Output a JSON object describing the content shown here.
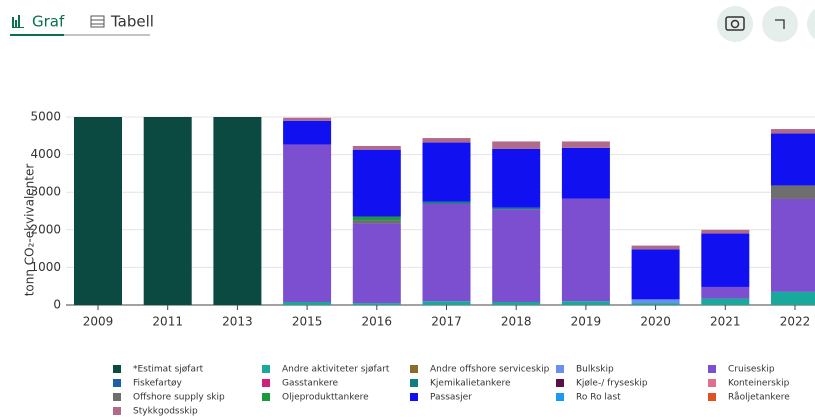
{
  "ui": {
    "tabs": [
      "Graf",
      "Tabell"
    ]
  },
  "chart_data": {
    "type": "stacked_bar",
    "y_label": "tonn CO₂-ekvivalenter",
    "categories": [
      "2009",
      "2011",
      "2013",
      "2015",
      "2016",
      "2017",
      "2018",
      "2019",
      "2020",
      "2021",
      "2022"
    ],
    "ylim": [
      0,
      5000
    ],
    "yticks": [
      0,
      1000,
      2000,
      3000,
      4000,
      5000
    ],
    "grid": true,
    "series": [
      {
        "name": "*Estimat sjøfart",
        "color": "#0b4a40",
        "values": [
          5000,
          5000,
          5000,
          null,
          null,
          null,
          null,
          null,
          null,
          null,
          null
        ]
      },
      {
        "name": "Andre aktiviteter sjøfart",
        "color": "#19a89c",
        "values": [
          null,
          null,
          null,
          80,
          50,
          100,
          80,
          100,
          50,
          170,
          350
        ]
      },
      {
        "name": "Andre offshore serviceskip",
        "color": "#8a6d2b",
        "values": [
          null,
          null,
          null,
          null,
          null,
          null,
          null,
          null,
          null,
          null,
          null
        ]
      },
      {
        "name": "Bulkskip",
        "color": "#6a8ff0",
        "values": [
          null,
          null,
          null,
          null,
          null,
          null,
          null,
          null,
          100,
          null,
          null
        ]
      },
      {
        "name": "Cruiseskip",
        "color": "#7b4fd0",
        "values": [
          null,
          null,
          null,
          4190,
          2120,
          2600,
          2470,
          2730,
          null,
          310,
          2470
        ]
      },
      {
        "name": "Fiskefartøy",
        "color": "#1f5fa8",
        "values": [
          null,
          null,
          null,
          null,
          null,
          null,
          null,
          null,
          null,
          null,
          null
        ]
      },
      {
        "name": "Gasstankere",
        "color": "#d0207a",
        "values": [
          null,
          null,
          null,
          null,
          null,
          null,
          null,
          null,
          null,
          null,
          null
        ]
      },
      {
        "name": "Kjemikalietankere",
        "color": "#0e7e7e",
        "values": [
          null,
          null,
          null,
          null,
          null,
          50,
          40,
          null,
          null,
          null,
          null
        ]
      },
      {
        "name": "Kjøle-/ fryseskip",
        "color": "#5a1040",
        "values": [
          null,
          null,
          null,
          null,
          null,
          null,
          null,
          null,
          null,
          null,
          null
        ]
      },
      {
        "name": "Konteinerskip",
        "color": "#e07090",
        "values": [
          null,
          null,
          null,
          null,
          null,
          null,
          null,
          null,
          null,
          null,
          null
        ]
      },
      {
        "name": "Offshore supply skip",
        "color": "#6e6e6e",
        "values": [
          null,
          null,
          null,
          null,
          80,
          null,
          null,
          null,
          null,
          null,
          360
        ]
      },
      {
        "name": "Oljeprodukttankere",
        "color": "#1a9a3a",
        "values": [
          null,
          null,
          null,
          null,
          100,
          null,
          null,
          null,
          null,
          null,
          null
        ]
      },
      {
        "name": "Passasjer",
        "color": "#1010f0",
        "values": [
          null,
          null,
          null,
          630,
          1780,
          1570,
          1560,
          1350,
          1330,
          1420,
          1380
        ]
      },
      {
        "name": "Ro Ro last",
        "color": "#1a9af0",
        "values": [
          null,
          null,
          null,
          null,
          null,
          null,
          null,
          null,
          null,
          null,
          null
        ]
      },
      {
        "name": "Råoljetankere",
        "color": "#e05020",
        "values": [
          null,
          null,
          null,
          null,
          null,
          null,
          null,
          null,
          null,
          null,
          null
        ]
      },
      {
        "name": "Stykkgodsskip",
        "color": "#b06a8a",
        "values": [
          null,
          null,
          null,
          80,
          100,
          120,
          200,
          170,
          100,
          100,
          120
        ]
      }
    ]
  }
}
